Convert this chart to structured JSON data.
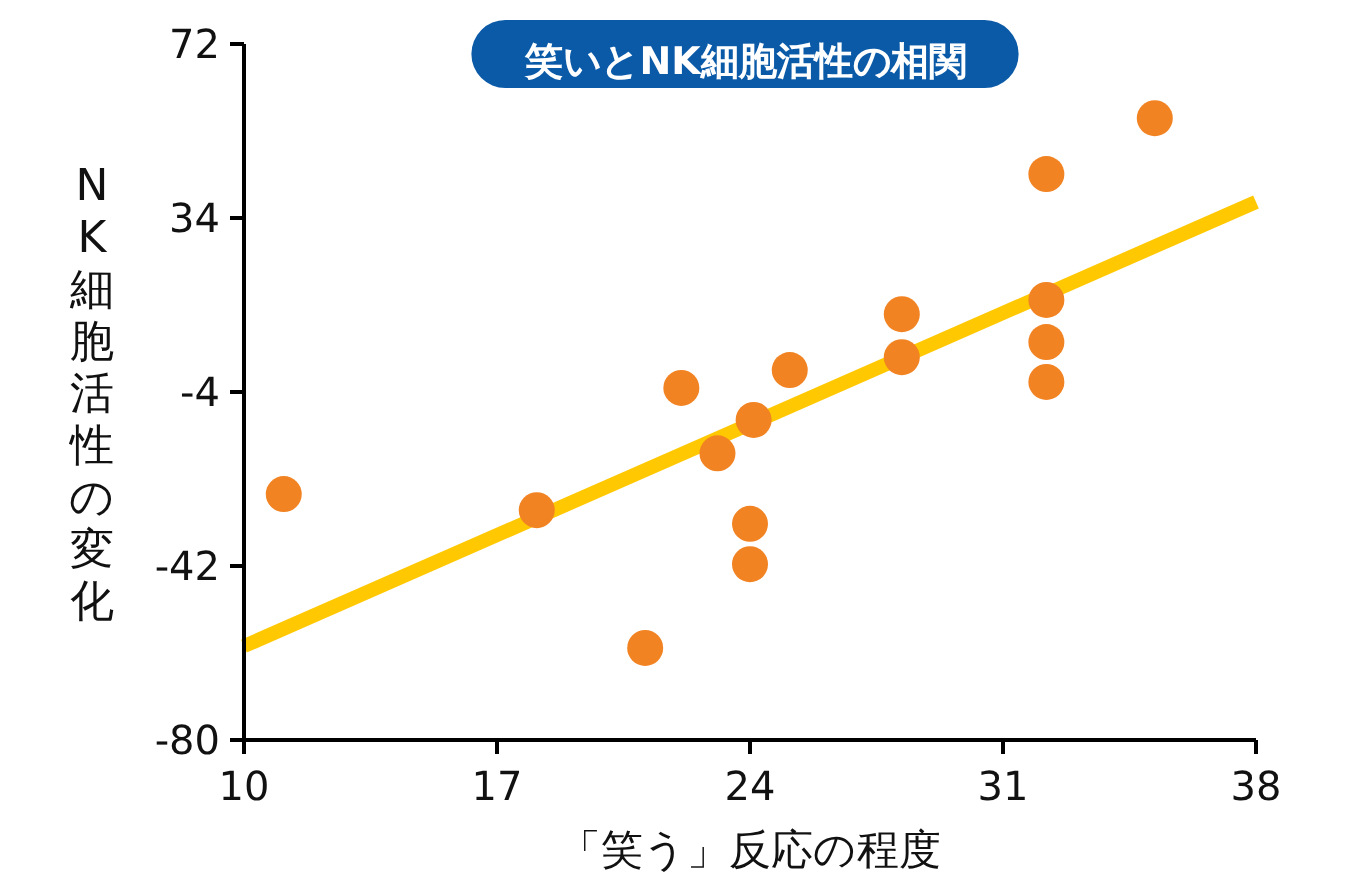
{
  "chart_data": {
    "type": "scatter",
    "title": "笑いとNK細胞活性の相関",
    "xlabel": "「笑う」反応の程度",
    "ylabel": "NK細胞活性の変化",
    "xlim": [
      10,
      38
    ],
    "xticks": [
      10,
      17,
      24,
      31,
      38
    ],
    "ylim": [
      -80,
      72
    ],
    "yticks": [
      -80,
      -42,
      -4,
      34,
      72
    ],
    "series": [
      {
        "type": "line",
        "color": "#ffc800",
        "marker": "none",
        "x": [
          10,
          38
        ],
        "values": [
          -59.5,
          37.5
        ]
      },
      {
        "color": "#f28322",
        "marker": "circle",
        "x": [
          11.1,
          18.1,
          21.1,
          22.1,
          23.1,
          24.1,
          24.0,
          24.0,
          25.1,
          28.2,
          28.2,
          32.2,
          32.2,
          32.2,
          32.2,
          35.2
        ],
        "values": [
          -26.3,
          -29.8,
          -59.9,
          -3.1,
          -17.4,
          -10.1,
          -32.8,
          -41.6,
          0.8,
          13,
          3.6,
          43.6,
          16.1,
          6.9,
          -1.8,
          55.8
        ]
      }
    ]
  }
}
